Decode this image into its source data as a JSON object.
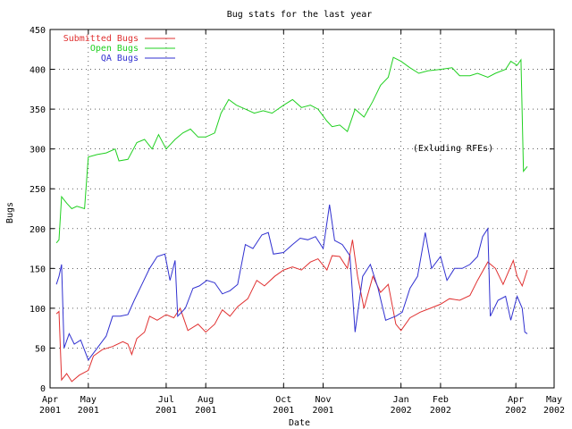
{
  "chart_data": {
    "type": "line",
    "title": "Bug stats for the last year",
    "xlabel": "Date",
    "ylabel": "Bugs",
    "annotation": "(Exluding RFEs)",
    "xlim": [
      "2001-04-01",
      "2002-05-01"
    ],
    "ylim": [
      0,
      450
    ],
    "y_ticks": [
      0,
      50,
      100,
      150,
      200,
      250,
      300,
      350,
      400,
      450
    ],
    "x_ticks": [
      {
        "date": "2001-04-01",
        "month": "Apr",
        "year": "2001"
      },
      {
        "date": "2001-05-01",
        "month": "May",
        "year": "2001"
      },
      {
        "date": "2001-07-01",
        "month": "Jul",
        "year": "2001"
      },
      {
        "date": "2001-08-01",
        "month": "Aug",
        "year": "2001"
      },
      {
        "date": "2001-10-01",
        "month": "Oct",
        "year": "2001"
      },
      {
        "date": "2001-11-01",
        "month": "Nov",
        "year": "2001"
      },
      {
        "date": "2002-01-01",
        "month": "Jan",
        "year": "2002"
      },
      {
        "date": "2002-02-01",
        "month": "Feb",
        "year": "2002"
      },
      {
        "date": "2002-04-01",
        "month": "Apr",
        "year": "2002"
      },
      {
        "date": "2002-05-01",
        "month": "May",
        "year": "2002"
      }
    ],
    "grid": true,
    "legend_position": "top-left",
    "series": [
      {
        "name": "Submitted Bugs",
        "color": "#e03030",
        "points": [
          [
            "2001-04-06",
            93
          ],
          [
            "2001-04-08",
            96
          ],
          [
            "2001-04-10",
            10
          ],
          [
            "2001-04-14",
            18
          ],
          [
            "2001-04-18",
            8
          ],
          [
            "2001-04-24",
            16
          ],
          [
            "2001-05-01",
            22
          ],
          [
            "2001-05-05",
            40
          ],
          [
            "2001-05-12",
            48
          ],
          [
            "2001-05-20",
            52
          ],
          [
            "2001-05-28",
            58
          ],
          [
            "2001-06-01",
            55
          ],
          [
            "2001-06-04",
            42
          ],
          [
            "2001-06-08",
            62
          ],
          [
            "2001-06-14",
            70
          ],
          [
            "2001-06-18",
            90
          ],
          [
            "2001-06-24",
            85
          ],
          [
            "2001-07-01",
            92
          ],
          [
            "2001-07-07",
            88
          ],
          [
            "2001-07-12",
            100
          ],
          [
            "2001-07-18",
            72
          ],
          [
            "2001-07-26",
            80
          ],
          [
            "2001-08-01",
            70
          ],
          [
            "2001-08-08",
            80
          ],
          [
            "2001-08-14",
            98
          ],
          [
            "2001-08-20",
            90
          ],
          [
            "2001-08-26",
            102
          ],
          [
            "2001-09-03",
            112
          ],
          [
            "2001-09-10",
            135
          ],
          [
            "2001-09-16",
            128
          ],
          [
            "2001-09-24",
            140
          ],
          [
            "2001-10-01",
            148
          ],
          [
            "2001-10-08",
            152
          ],
          [
            "2001-10-15",
            148
          ],
          [
            "2001-10-22",
            158
          ],
          [
            "2001-10-28",
            162
          ],
          [
            "2001-11-04",
            148
          ],
          [
            "2001-11-08",
            166
          ],
          [
            "2001-11-14",
            165
          ],
          [
            "2001-11-20",
            150
          ],
          [
            "2001-11-24",
            186
          ],
          [
            "2001-11-28",
            140
          ],
          [
            "2001-12-03",
            100
          ],
          [
            "2001-12-10",
            140
          ],
          [
            "2001-12-16",
            120
          ],
          [
            "2001-12-22",
            130
          ],
          [
            "2001-12-28",
            80
          ],
          [
            "2002-01-01",
            72
          ],
          [
            "2002-01-08",
            88
          ],
          [
            "2002-01-16",
            95
          ],
          [
            "2002-01-24",
            100
          ],
          [
            "2002-02-01",
            105
          ],
          [
            "2002-02-08",
            112
          ],
          [
            "2002-02-16",
            110
          ],
          [
            "2002-02-24",
            116
          ],
          [
            "2002-03-02",
            135
          ],
          [
            "2002-03-10",
            158
          ],
          [
            "2002-03-16",
            150
          ],
          [
            "2002-03-22",
            130
          ],
          [
            "2002-03-26",
            145
          ],
          [
            "2002-03-30",
            160
          ],
          [
            "2002-04-02",
            140
          ],
          [
            "2002-04-06",
            128
          ],
          [
            "2002-04-10",
            148
          ]
        ]
      },
      {
        "name": "Open Bugs",
        "color": "#20d020",
        "points": [
          [
            "2001-04-06",
            182
          ],
          [
            "2001-04-08",
            186
          ],
          [
            "2001-04-10",
            240
          ],
          [
            "2001-04-14",
            232
          ],
          [
            "2001-04-18",
            225
          ],
          [
            "2001-04-22",
            228
          ],
          [
            "2001-04-28",
            225
          ],
          [
            "2001-05-01",
            290
          ],
          [
            "2001-05-08",
            293
          ],
          [
            "2001-05-15",
            295
          ],
          [
            "2001-05-22",
            300
          ],
          [
            "2001-05-25",
            285
          ],
          [
            "2001-06-01",
            287
          ],
          [
            "2001-06-08",
            308
          ],
          [
            "2001-06-14",
            312
          ],
          [
            "2001-06-20",
            300
          ],
          [
            "2001-06-25",
            318
          ],
          [
            "2001-07-01",
            300
          ],
          [
            "2001-07-08",
            312
          ],
          [
            "2001-07-14",
            320
          ],
          [
            "2001-07-20",
            325
          ],
          [
            "2001-07-26",
            315
          ],
          [
            "2001-08-01",
            315
          ],
          [
            "2001-08-08",
            320
          ],
          [
            "2001-08-13",
            345
          ],
          [
            "2001-08-19",
            362
          ],
          [
            "2001-08-25",
            355
          ],
          [
            "2001-09-01",
            350
          ],
          [
            "2001-09-08",
            345
          ],
          [
            "2001-09-15",
            348
          ],
          [
            "2001-09-22",
            345
          ],
          [
            "2001-10-01",
            355
          ],
          [
            "2001-10-08",
            362
          ],
          [
            "2001-10-15",
            352
          ],
          [
            "2001-10-22",
            355
          ],
          [
            "2001-10-28",
            350
          ],
          [
            "2001-11-04",
            335
          ],
          [
            "2001-11-08",
            328
          ],
          [
            "2001-11-14",
            330
          ],
          [
            "2001-11-20",
            322
          ],
          [
            "2001-11-26",
            350
          ],
          [
            "2001-12-03",
            340
          ],
          [
            "2001-12-10",
            360
          ],
          [
            "2001-12-16",
            380
          ],
          [
            "2001-12-22",
            390
          ],
          [
            "2001-12-26",
            415
          ],
          [
            "2002-01-01",
            410
          ],
          [
            "2002-01-08",
            402
          ],
          [
            "2002-01-15",
            395
          ],
          [
            "2002-01-22",
            398
          ],
          [
            "2002-02-01",
            400
          ],
          [
            "2002-02-10",
            402
          ],
          [
            "2002-02-16",
            392
          ],
          [
            "2002-02-24",
            392
          ],
          [
            "2002-03-02",
            395
          ],
          [
            "2002-03-10",
            390
          ],
          [
            "2002-03-16",
            395
          ],
          [
            "2002-03-24",
            400
          ],
          [
            "2002-03-28",
            410
          ],
          [
            "2002-04-02",
            405
          ],
          [
            "2002-04-05",
            412
          ],
          [
            "2002-04-07",
            272
          ],
          [
            "2002-04-10",
            278
          ]
        ]
      },
      {
        "name": "QA Bugs",
        "color": "#3030d0",
        "points": [
          [
            "2001-04-06",
            130
          ],
          [
            "2001-04-08",
            140
          ],
          [
            "2001-04-10",
            155
          ],
          [
            "2001-04-12",
            50
          ],
          [
            "2001-04-16",
            68
          ],
          [
            "2001-04-20",
            55
          ],
          [
            "2001-04-25",
            60
          ],
          [
            "2001-05-01",
            35
          ],
          [
            "2001-05-08",
            50
          ],
          [
            "2001-05-15",
            65
          ],
          [
            "2001-05-20",
            90
          ],
          [
            "2001-05-26",
            90
          ],
          [
            "2001-06-01",
            92
          ],
          [
            "2001-06-06",
            110
          ],
          [
            "2001-06-12",
            130
          ],
          [
            "2001-06-18",
            150
          ],
          [
            "2001-06-24",
            165
          ],
          [
            "2001-06-30",
            168
          ],
          [
            "2001-07-04",
            135
          ],
          [
            "2001-07-08",
            160
          ],
          [
            "2001-07-10",
            90
          ],
          [
            "2001-07-16",
            100
          ],
          [
            "2001-07-22",
            125
          ],
          [
            "2001-07-27",
            128
          ],
          [
            "2001-08-02",
            135
          ],
          [
            "2001-08-08",
            132
          ],
          [
            "2001-08-14",
            118
          ],
          [
            "2001-08-20",
            122
          ],
          [
            "2001-08-26",
            130
          ],
          [
            "2001-09-01",
            180
          ],
          [
            "2001-09-07",
            175
          ],
          [
            "2001-09-14",
            192
          ],
          [
            "2001-09-19",
            195
          ],
          [
            "2001-09-23",
            168
          ],
          [
            "2001-10-01",
            170
          ],
          [
            "2001-10-08",
            180
          ],
          [
            "2001-10-14",
            188
          ],
          [
            "2001-10-20",
            186
          ],
          [
            "2001-10-26",
            190
          ],
          [
            "2001-11-01",
            175
          ],
          [
            "2001-11-06",
            230
          ],
          [
            "2001-11-10",
            185
          ],
          [
            "2001-11-16",
            180
          ],
          [
            "2001-11-22",
            166
          ],
          [
            "2001-11-26",
            70
          ],
          [
            "2001-12-02",
            140
          ],
          [
            "2001-12-08",
            155
          ],
          [
            "2001-12-14",
            125
          ],
          [
            "2001-12-20",
            85
          ],
          [
            "2001-12-28",
            90
          ],
          [
            "2002-01-02",
            95
          ],
          [
            "2002-01-08",
            125
          ],
          [
            "2002-01-14",
            140
          ],
          [
            "2002-01-20",
            195
          ],
          [
            "2002-01-25",
            150
          ],
          [
            "2002-02-01",
            165
          ],
          [
            "2002-02-06",
            135
          ],
          [
            "2002-02-12",
            150
          ],
          [
            "2002-02-18",
            150
          ],
          [
            "2002-02-24",
            155
          ],
          [
            "2002-03-02",
            165
          ],
          [
            "2002-03-06",
            190
          ],
          [
            "2002-03-10",
            200
          ],
          [
            "2002-03-12",
            90
          ],
          [
            "2002-03-18",
            110
          ],
          [
            "2002-03-24",
            115
          ],
          [
            "2002-03-28",
            85
          ],
          [
            "2002-04-02",
            115
          ],
          [
            "2002-04-06",
            100
          ],
          [
            "2002-04-08",
            70
          ],
          [
            "2002-04-10",
            68
          ]
        ]
      }
    ]
  }
}
